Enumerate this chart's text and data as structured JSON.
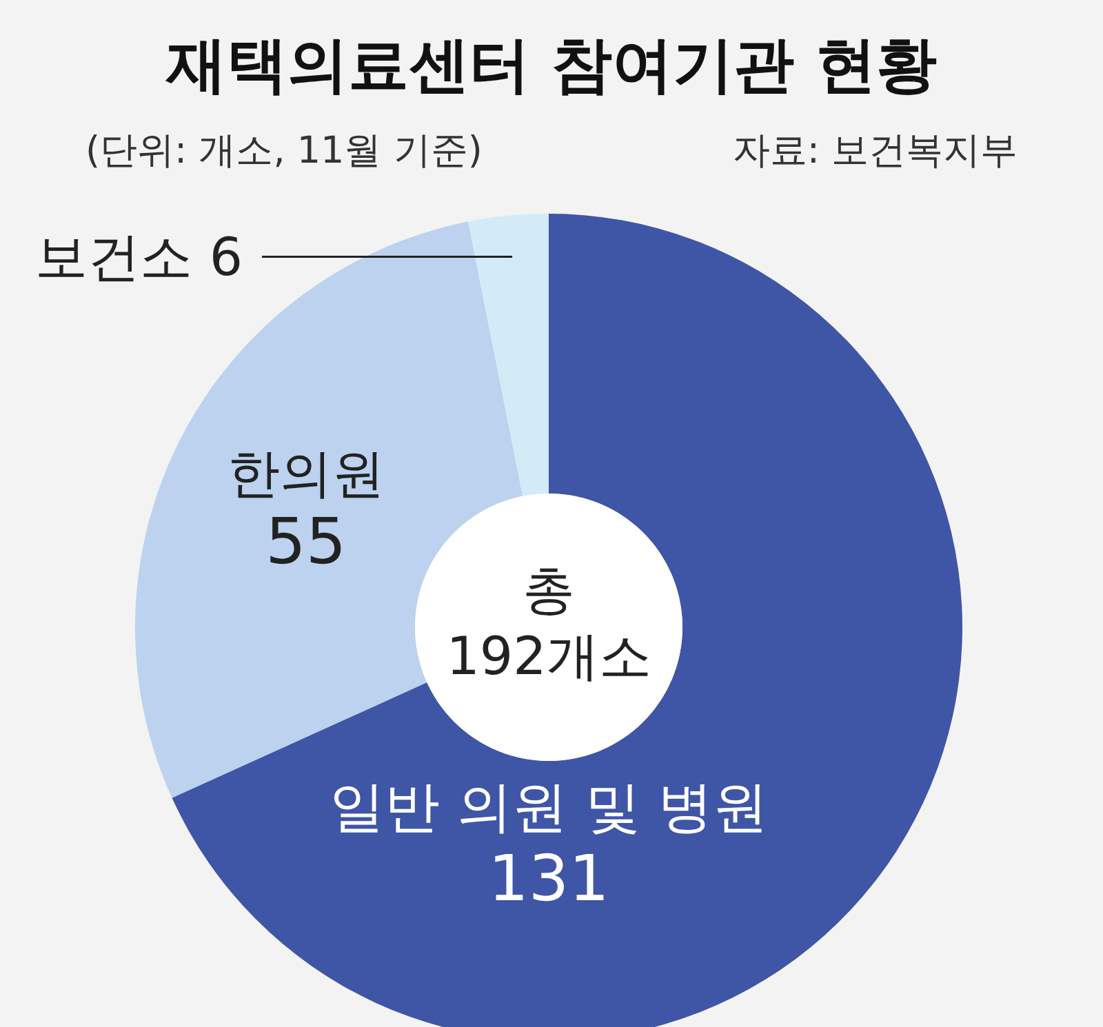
{
  "chart_data": {
    "type": "donut",
    "title": "재택의료센터 참여기관 현황",
    "subtitle": "(단위: 개소, 11월 기준)",
    "annotations": [
      "자료: 보건복지부",
      "총 192개소"
    ],
    "categories": [
      "일반 의원 및 병원",
      "한의원",
      "보건소"
    ],
    "values": [
      131,
      55,
      6
    ],
    "colors": [
      "#3f55a6",
      "#bcd2ee",
      "#d2ebf7"
    ],
    "data_labels": true
  }
}
